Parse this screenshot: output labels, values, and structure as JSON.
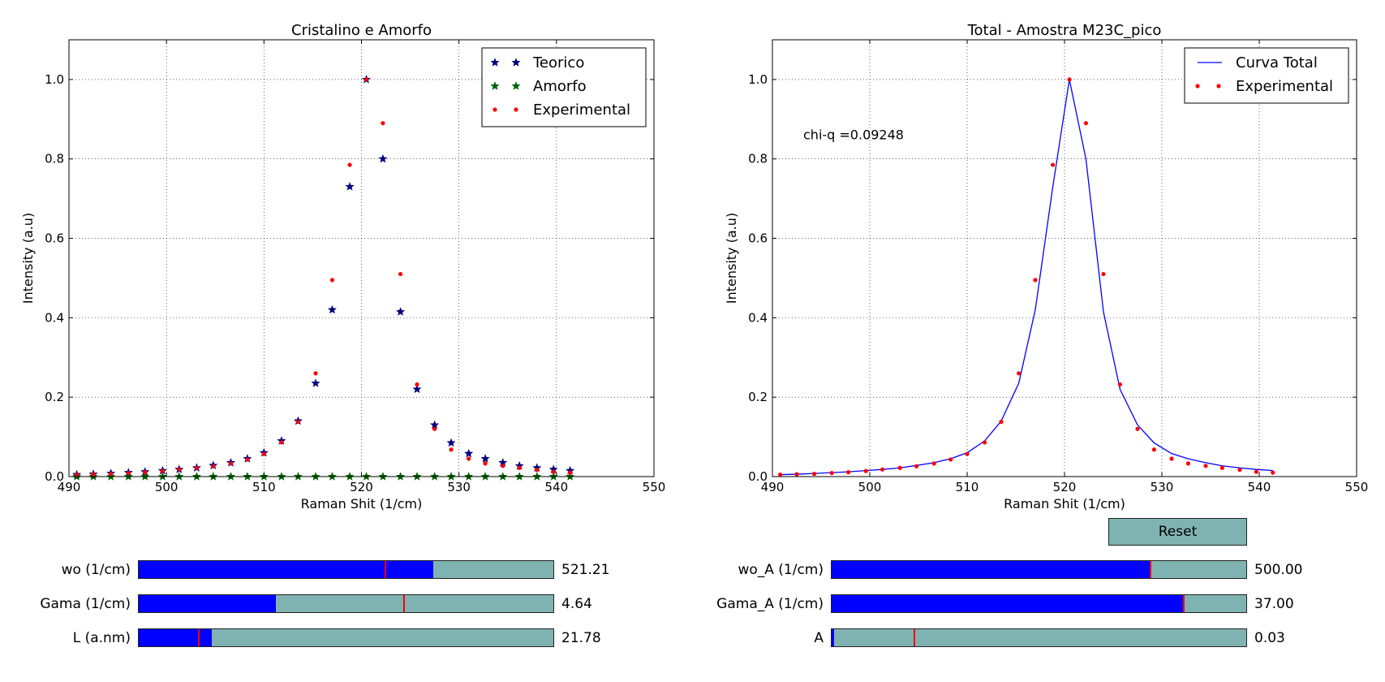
{
  "chart_data": [
    {
      "type": "scatter",
      "title": "Cristalino e Amorfo",
      "xlabel": "Raman Shit (1/cm)",
      "ylabel": "Intensity (a.u)",
      "xlim": [
        490,
        550
      ],
      "ylim": [
        0,
        1.1
      ],
      "xticks": [
        "490",
        "500",
        "510",
        "520",
        "530",
        "540",
        "550"
      ],
      "yticks": [
        "0.0",
        "0.2",
        "0.4",
        "0.6",
        "0.8",
        "1.0"
      ],
      "grid": true,
      "legend_position": "top-right",
      "x": [
        490.8,
        492.5,
        494.3,
        496.1,
        497.8,
        499.6,
        501.3,
        503.1,
        504.8,
        506.6,
        508.3,
        510.0,
        511.8,
        513.5,
        515.3,
        517.0,
        518.8,
        520.5,
        522.2,
        524.0,
        525.7,
        527.5,
        529.2,
        531.0,
        532.7,
        534.5,
        536.2,
        538.0,
        539.7,
        541.4
      ],
      "series": [
        {
          "name": "Teorico",
          "marker": "star",
          "color": "#000080",
          "values": [
            0.005,
            0.006,
            0.008,
            0.01,
            0.012,
            0.015,
            0.018,
            0.022,
            0.028,
            0.035,
            0.045,
            0.06,
            0.09,
            0.14,
            0.235,
            0.42,
            0.73,
            1.0,
            0.8,
            0.415,
            0.22,
            0.13,
            0.085,
            0.058,
            0.045,
            0.035,
            0.027,
            0.022,
            0.018,
            0.015
          ]
        },
        {
          "name": "Amorfo",
          "marker": "star",
          "color": "#006400",
          "values": [
            0,
            0,
            0,
            0,
            0,
            0,
            0,
            0,
            0,
            0,
            0,
            0,
            0,
            0,
            0,
            0,
            0,
            0,
            0,
            0,
            0,
            0,
            0,
            0,
            0,
            0,
            0,
            0,
            0,
            0
          ]
        },
        {
          "name": "Experimental",
          "marker": "dot",
          "color": "#ff0000",
          "values": [
            0.005,
            0.006,
            0.007,
            0.009,
            0.011,
            0.014,
            0.018,
            0.022,
            0.026,
            0.033,
            0.043,
            0.057,
            0.086,
            0.138,
            0.26,
            0.495,
            0.785,
            1.0,
            0.89,
            0.51,
            0.232,
            0.12,
            0.068,
            0.045,
            0.033,
            0.027,
            0.022,
            0.017,
            0.012,
            0.01
          ]
        }
      ]
    },
    {
      "type": "line",
      "title": "Total - Amostra M23C_pico",
      "xlabel": "Raman Shit (1/cm)",
      "ylabel": "Intensity (a.u)",
      "xlim": [
        490,
        550
      ],
      "ylim": [
        0,
        1.1
      ],
      "xticks": [
        "490",
        "500",
        "510",
        "520",
        "530",
        "540",
        "550"
      ],
      "yticks": [
        "0.0",
        "0.2",
        "0.4",
        "0.6",
        "0.8",
        "1.0"
      ],
      "grid": true,
      "legend_position": "top-right",
      "annotation": "chi-q =0.09248",
      "x": [
        490.8,
        492.5,
        494.3,
        496.1,
        497.8,
        499.6,
        501.3,
        503.1,
        504.8,
        506.6,
        508.3,
        510.0,
        511.8,
        513.5,
        515.3,
        517.0,
        518.8,
        520.5,
        522.2,
        524.0,
        525.7,
        527.5,
        529.2,
        531.0,
        532.7,
        534.5,
        536.2,
        538.0,
        539.7,
        541.4
      ],
      "series": [
        {
          "name": "Curva Total",
          "marker": "line",
          "color": "#0000ff",
          "values": [
            0.005,
            0.006,
            0.008,
            0.01,
            0.012,
            0.015,
            0.018,
            0.022,
            0.028,
            0.035,
            0.045,
            0.06,
            0.09,
            0.14,
            0.235,
            0.42,
            0.73,
            1.0,
            0.8,
            0.415,
            0.22,
            0.13,
            0.085,
            0.058,
            0.045,
            0.035,
            0.027,
            0.022,
            0.018,
            0.015
          ]
        },
        {
          "name": "Experimental",
          "marker": "dot",
          "color": "#ff0000",
          "values": [
            0.005,
            0.006,
            0.007,
            0.009,
            0.011,
            0.014,
            0.018,
            0.022,
            0.026,
            0.033,
            0.043,
            0.057,
            0.086,
            0.138,
            0.26,
            0.495,
            0.785,
            1.0,
            0.89,
            0.51,
            0.232,
            0.12,
            0.068,
            0.045,
            0.033,
            0.027,
            0.022,
            0.017,
            0.012,
            0.01
          ]
        }
      ]
    }
  ],
  "sliders": {
    "left": [
      {
        "label": "wo (1/cm)",
        "value": "521.21",
        "fill_fraction": 0.71,
        "initial_fraction": 0.595
      },
      {
        "label": "Gama (1/cm)",
        "value": "4.64",
        "fill_fraction": 0.33,
        "initial_fraction": 0.64
      },
      {
        "label": "L (a.nm)",
        "value": "21.78",
        "fill_fraction": 0.176,
        "initial_fraction": 0.145
      }
    ],
    "right": [
      {
        "label": "wo_A (1/cm)",
        "value": "500.00",
        "fill_fraction": 0.77,
        "initial_fraction": 0.77
      },
      {
        "label": "Gama_A (1/cm)",
        "value": "37.00",
        "fill_fraction": 0.85,
        "initial_fraction": 0.85
      },
      {
        "label": "A",
        "value": "0.03",
        "fill_fraction": 0.006,
        "initial_fraction": 0.2
      }
    ]
  },
  "reset_button": {
    "label": "Reset"
  },
  "colors": {
    "slider_track": "#7fb3b2",
    "slider_fill": "#0000ff",
    "slider_initial_marker": "#ff0000"
  }
}
